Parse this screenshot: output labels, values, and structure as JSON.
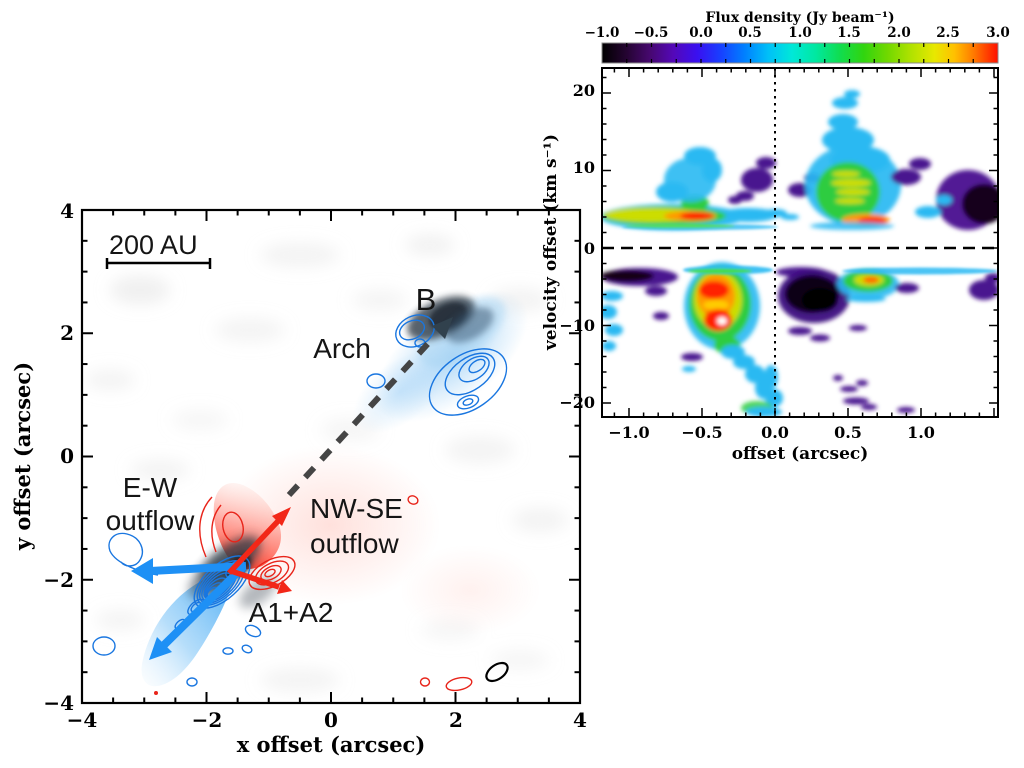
{
  "left_panel": {
    "xlabel": "x offset (arcsec)",
    "ylabel": "y offset (arcsec)",
    "x_ticks": [
      "−4",
      "−2",
      "0",
      "2",
      "4"
    ],
    "y_ticks": [
      "4",
      "2",
      "0",
      "−2",
      "−4"
    ],
    "scale_bar_label": "200 AU",
    "annotations": {
      "b": "B",
      "arch": "Arch",
      "ew_line1": "E-W",
      "ew_line2": "outflow",
      "nwse_line1": "NW-SE",
      "nwse_line2": "outflow",
      "a1a2": "A1+A2"
    }
  },
  "right_panel": {
    "colorbar_title": "Flux density (Jy beam⁻¹)",
    "colorbar_ticks": [
      "−1.0",
      "−0.5",
      "0.0",
      "0.5",
      "1.0",
      "1.5",
      "2.0",
      "2.5",
      "3.0"
    ],
    "xlabel": "offset (arcsec)",
    "ylabel": "velocity offset (km s⁻¹)",
    "x_ticks": [
      "−1.0",
      "−0.5",
      "0.0",
      "0.5",
      "1.0"
    ],
    "y_ticks": [
      "20",
      "10",
      "0",
      "−10",
      "−20"
    ]
  },
  "colors": {
    "blue_outflow": "#1e90f5",
    "red_outflow": "#f22718",
    "dashed_arrow": "#454545",
    "colormap": "rainbow black-purple-blue-cyan-green-yellow-red"
  },
  "chart_data": [
    {
      "type": "heatmap",
      "panel": "left",
      "title": "Continuum and outflow map around sources A1+A2 and B",
      "xlabel": "x offset (arcsec)",
      "ylabel": "y offset (arcsec)",
      "xlim": [
        -4,
        4
      ],
      "ylim": [
        -4,
        4
      ],
      "x_ticks": [
        -4,
        -2,
        0,
        2,
        4
      ],
      "y_ticks": [
        4,
        2,
        0,
        -2,
        -4
      ],
      "grid": false,
      "scale_bar": {
        "label": "200 AU",
        "x_from": -3.6,
        "x_to": -1.95,
        "y": 3.15
      },
      "sources": [
        {
          "name": "A1+A2",
          "x": -1.6,
          "y": -1.9,
          "appearance": "dark grayscale continuum peak"
        },
        {
          "name": "B",
          "x": 1.8,
          "y": 2.1,
          "appearance": "dark grayscale continuum peak with blue haze"
        }
      ],
      "arrows": [
        {
          "name": "E-W outflow west lobe",
          "color": "blue",
          "from": [
            -1.55,
            -1.85
          ],
          "to": [
            -3.2,
            -1.9
          ]
        },
        {
          "name": "E-W outflow southwest jet",
          "color": "blue",
          "from": [
            -1.5,
            -1.8
          ],
          "to": [
            -2.9,
            -3.1
          ]
        },
        {
          "name": "NW-SE outflow northeast arrow",
          "color": "red",
          "from": [
            -1.6,
            -1.95
          ],
          "to": [
            -0.65,
            -0.8
          ]
        },
        {
          "name": "NW-SE outflow east arrow",
          "color": "red",
          "from": [
            -1.6,
            -1.95
          ],
          "to": [
            -0.65,
            -2.2
          ]
        },
        {
          "name": "A-to-B dashed arrow",
          "color": "dark-gray",
          "style": "dashed",
          "from": [
            -0.75,
            -0.65
          ],
          "to": [
            1.95,
            2.25
          ]
        }
      ],
      "contour_features": [
        {
          "name": "blue jet knots SW of A1+A2",
          "x": -1.9,
          "y": -2.3,
          "color": "blue"
        },
        {
          "name": "blue loop on west arrow",
          "x": -2.9,
          "y": -1.6,
          "color": "blue"
        },
        {
          "name": "red lobe contours NE/E of A1+A2",
          "x": -1.2,
          "y": -1.9,
          "color": "red"
        },
        {
          "name": "Arch blue contours SE of B",
          "x": 2.3,
          "y": 1.1,
          "color": "blue"
        },
        {
          "name": "blue contours at B",
          "x": 1.55,
          "y": 1.9,
          "color": "blue"
        },
        {
          "name": "small red contours bottom right",
          "x": 2.6,
          "y": -3.6,
          "color": "red"
        },
        {
          "name": "beam ellipse",
          "x": 2.7,
          "y": -3.45,
          "color": "black"
        }
      ],
      "annotations": [
        "200 AU",
        "E-W outflow",
        "NW-SE outflow",
        "A1+A2",
        "Arch",
        "B"
      ]
    },
    {
      "type": "heatmap",
      "panel": "right",
      "title": "Position-velocity diagram",
      "xlabel": "offset (arcsec)",
      "ylabel": "velocity offset (km s⁻¹)",
      "xlim": [
        -1.18,
        1.53
      ],
      "ylim": [
        -21.8,
        23.2
      ],
      "x_ticks": [
        -1.0,
        -0.5,
        0.0,
        0.5,
        1.0
      ],
      "y_ticks": [
        20,
        10,
        0,
        -10,
        -20
      ],
      "colorbar": {
        "title": "Flux density (Jy beam⁻¹)",
        "min": -1.0,
        "max": 3.0,
        "ticks": [
          -1.0,
          -0.5,
          0.0,
          0.5,
          1.0,
          1.5,
          2.0,
          2.5,
          3.0
        ],
        "colormap": "rainbow (black-purple-blue-cyan-green-yellow-red)"
      },
      "reference_lines": [
        {
          "type": "horizontal-dashed",
          "velocity": 0
        },
        {
          "type": "vertical-dotted",
          "offset": 0
        }
      ],
      "features": [
        {
          "offset": -0.5,
          "velocity": 4,
          "peak_flux": 2.9,
          "note": "red-cored band v≈+3..6 spanning offset −1.18..−0.3"
        },
        {
          "offset": -0.55,
          "velocity": 9,
          "peak_flux": 0.6,
          "note": "cyan cloud v≈+6..12"
        },
        {
          "offset": -0.1,
          "velocity": 8.5,
          "peak_flux": -0.5,
          "note": "purple negative patches near offset 0"
        },
        {
          "offset": 0.45,
          "velocity": 7,
          "peak_flux": 1.8,
          "note": "large green blob v≈+3..14 with yellow streaks"
        },
        {
          "offset": 0.62,
          "velocity": 3.5,
          "peak_flux": 2.9,
          "note": "orange-red streak at base of green blob"
        },
        {
          "offset": 0.5,
          "velocity": 18,
          "peak_flux": 0.5,
          "note": "detached cyan clump"
        },
        {
          "offset": 0.9,
          "velocity": 9,
          "peak_flux": -0.5,
          "note": "purple patches"
        },
        {
          "offset": 1.35,
          "velocity": 6,
          "peak_flux": -1.0,
          "note": "dark negative blob at right edge"
        },
        {
          "offset": -1.05,
          "velocity": -3.5,
          "peak_flux": -1.0,
          "note": "black negative streak upper left of lower half"
        },
        {
          "offset": -0.35,
          "velocity": -6,
          "peak_flux": 2.9,
          "note": "upper red core of bright blob"
        },
        {
          "offset": -0.33,
          "velocity": -9.5,
          "peak_flux": 3.0,
          "note": "saturated white-centered red core"
        },
        {
          "offset": -0.35,
          "velocity": -8,
          "peak_flux": 2.0,
          "note": "green/yellow envelope v≈−3..−13"
        },
        {
          "offset": -0.15,
          "velocity": -15,
          "peak_flux": 0.5,
          "note": "cyan tail descending to v≈−22"
        },
        {
          "offset": 0.28,
          "velocity": -6.5,
          "peak_flux": -1.0,
          "note": "black negative blob right of offset 0"
        },
        {
          "offset": 0.62,
          "velocity": -4.2,
          "peak_flux": 2.2,
          "note": "green blob with yellow-orange core"
        },
        {
          "offset": 1.0,
          "velocity": -2.9,
          "peak_flux": 0.4,
          "note": "thin cyan strip along v≈−3 to right edge"
        },
        {
          "offset": 0.55,
          "velocity": -20,
          "peak_flux": -0.5,
          "note": "purple dashes near bottom edge"
        }
      ]
    }
  ]
}
